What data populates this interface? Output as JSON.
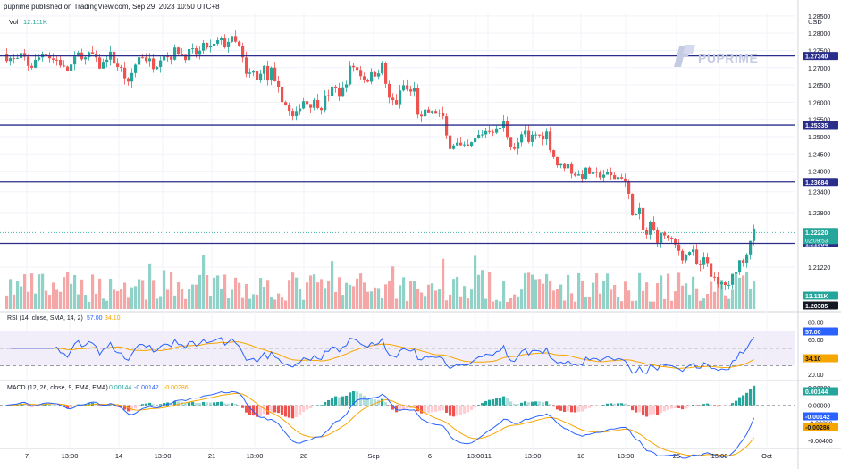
{
  "header": {
    "published_text": "puprime published on TradingView.com, Sep 29, 2023 10:50 UTC+8",
    "currency": "USD",
    "brand": "PUPRIME"
  },
  "chart_data": [
    {
      "type": "candlestick",
      "title": "Price",
      "currency": "USD",
      "ylim": [
        1.2,
        1.286
      ],
      "y_ticks": [
        1.285,
        1.28,
        1.275,
        1.27,
        1.265,
        1.26,
        1.255,
        1.25,
        1.245,
        1.24,
        1.234,
        1.228,
        1.2122
      ],
      "y_tick_labels": [
        "1.28500",
        "1.28000",
        "1.27500",
        "1.27000",
        "1.26500",
        "1.26000",
        "1.25500",
        "1.25000",
        "1.24500",
        "1.24000",
        "1.23400",
        "1.22800",
        "1.21220"
      ],
      "x_tick_labels": [
        "7",
        "13:00",
        "14",
        "13:00",
        "21",
        "13:00",
        "28",
        "Sep",
        "6",
        "13:00",
        "11",
        "13:00",
        "18",
        "13:00",
        "25",
        "13:00",
        "Oct"
      ],
      "support_resistance_levels": [
        {
          "value": 1.2734,
          "label": "1.27340",
          "color": "#2a2e8a"
        },
        {
          "value": 1.25335,
          "label": "1.25335",
          "color": "#2a2e8a"
        },
        {
          "value": 1.23684,
          "label": "1.23684",
          "color": "#2a2e8a"
        },
        {
          "value": 1.21904,
          "label": "1.21904",
          "color": "#2a2e8a"
        }
      ],
      "current_price": {
        "value": 1.2222,
        "label": "1.22220",
        "countdown": "02:09:53",
        "color": "#26a69a"
      },
      "last_close_approx": 1.2222,
      "price_path": [
        [
          0,
          1.2715
        ],
        [
          6,
          1.274
        ],
        [
          12,
          1.273
        ],
        [
          20,
          1.2718
        ],
        [
          28,
          1.2735
        ],
        [
          36,
          1.27
        ],
        [
          44,
          1.2722
        ],
        [
          52,
          1.2752
        ],
        [
          60,
          1.2725
        ],
        [
          68,
          1.2722
        ],
        [
          76,
          1.2686
        ],
        [
          84,
          1.2712
        ],
        [
          92,
          1.2745
        ],
        [
          100,
          1.2718
        ],
        [
          104,
          1.275
        ],
        [
          108,
          1.2722
        ],
        [
          116,
          1.27
        ],
        [
          124,
          1.2745
        ],
        [
          132,
          1.271
        ],
        [
          140,
          1.2688
        ],
        [
          146,
          1.2648
        ],
        [
          152,
          1.27
        ],
        [
          160,
          1.274
        ],
        [
          168,
          1.2722
        ],
        [
          176,
          1.2705
        ],
        [
          184,
          1.2745
        ],
        [
          192,
          1.273
        ],
        [
          200,
          1.2752
        ],
        [
          208,
          1.2733
        ],
        [
          216,
          1.2745
        ],
        [
          224,
          1.2738
        ],
        [
          232,
          1.2765
        ],
        [
          240,
          1.2755
        ],
        [
          248,
          1.278
        ],
        [
          254,
          1.2768
        ],
        [
          260,
          1.2785
        ],
        [
          266,
          1.277
        ],
        [
          272,
          1.275
        ],
        [
          276,
          1.2692
        ],
        [
          280,
          1.266
        ],
        [
          284,
          1.27
        ],
        [
          290,
          1.266
        ],
        [
          296,
          1.2712
        ],
        [
          302,
          1.2665
        ],
        [
          306,
          1.269
        ],
        [
          310,
          1.2648
        ],
        [
          316,
          1.2625
        ],
        [
          324,
          1.258
        ],
        [
          332,
          1.2545
        ],
        [
          340,
          1.261
        ],
        [
          348,
          1.2595
        ],
        [
          356,
          1.26
        ],
        [
          362,
          1.259
        ],
        [
          368,
          1.262
        ],
        [
          376,
          1.264
        ],
        [
          384,
          1.262
        ],
        [
          390,
          1.2665
        ],
        [
          396,
          1.271
        ],
        [
          404,
          1.2688
        ],
        [
          412,
          1.2665
        ],
        [
          420,
          1.268
        ],
        [
          430,
          1.2705
        ],
        [
          438,
          1.2605
        ],
        [
          446,
          1.26
        ],
        [
          454,
          1.2648
        ],
        [
          460,
          1.2628
        ],
        [
          466,
          1.2635
        ],
        [
          472,
          1.254
        ],
        [
          480,
          1.2575
        ],
        [
          486,
          1.2565
        ],
        [
          492,
          1.2575
        ],
        [
          498,
          1.2548
        ],
        [
          504,
          1.2475
        ],
        [
          512,
          1.2485
        ],
        [
          520,
          1.2462
        ],
        [
          528,
          1.247
        ],
        [
          536,
          1.2498
        ],
        [
          544,
          1.2515
        ],
        [
          552,
          1.2525
        ],
        [
          558,
          1.2515
        ],
        [
          566,
          1.254
        ],
        [
          572,
          1.2488
        ],
        [
          580,
          1.2462
        ],
        [
          588,
          1.252
        ],
        [
          594,
          1.2478
        ],
        [
          600,
          1.251
        ],
        [
          606,
          1.25
        ],
        [
          614,
          1.251
        ],
        [
          620,
          1.2455
        ],
        [
          628,
          1.2408
        ],
        [
          636,
          1.2422
        ],
        [
          644,
          1.2395
        ],
        [
          652,
          1.2385
        ],
        [
          660,
          1.2402
        ],
        [
          668,
          1.238
        ],
        [
          676,
          1.2395
        ],
        [
          684,
          1.2385
        ],
        [
          692,
          1.238
        ],
        [
          700,
          1.239
        ],
        [
          706,
          1.2325
        ],
        [
          712,
          1.2265
        ],
        [
          718,
          1.228
        ],
        [
          724,
          1.22
        ],
        [
          730,
          1.2245
        ],
        [
          738,
          1.2205
        ],
        [
          746,
          1.2218
        ],
        [
          752,
          1.2195
        ],
        [
          760,
          1.218
        ],
        [
          768,
          1.2145
        ],
        [
          776,
          1.2178
        ],
        [
          784,
          1.211
        ],
        [
          792,
          1.215
        ],
        [
          800,
          1.209
        ],
        [
          806,
          1.2065
        ],
        [
          812,
          1.208
        ],
        [
          818,
          1.206
        ],
        [
          824,
          1.211
        ],
        [
          830,
          1.2138
        ],
        [
          836,
          1.215
        ],
        [
          844,
          1.2222
        ]
      ]
    },
    {
      "type": "bar",
      "title": "Vol",
      "value_label": "12.111K",
      "value_color": "#26a69a",
      "labels": [
        {
          "label": "12.111K",
          "color": "#26a69a"
        },
        {
          "label": "1.20385",
          "color": "#131722"
        }
      ],
      "colors": {
        "up": "#90d2c8",
        "down": "#f5a6a6"
      }
    },
    {
      "type": "line",
      "title": "RSI (14, close, SMA, 14, 2)",
      "values_label": {
        "rsi": "57.00",
        "sma": "34.10"
      },
      "ylim": [
        15,
        90
      ],
      "y_ticks": [
        80,
        60,
        40,
        20
      ],
      "y_tick_labels": [
        "80.00",
        "60.00",
        "40.00",
        "20.00"
      ],
      "bands": {
        "upper": 70,
        "middle": 50,
        "lower": 30
      },
      "current_labels": [
        {
          "label": "57.00",
          "color": "#2962ff"
        },
        {
          "label": "34.10",
          "color": "#f7a600"
        }
      ],
      "series": [
        {
          "name": "RSI",
          "color": "#2962ff"
        },
        {
          "name": "RSI-based MA",
          "color": "#f7a600"
        }
      ]
    },
    {
      "type": "bar_line",
      "title": "MACD (12, 26, close, 9, EMA, EMA)",
      "values_label": {
        "histogram": "0.00144",
        "macd": "-0.00142",
        "signal": "-0.00286"
      },
      "ylim": [
        -0.0047,
        0.0026
      ],
      "y_ticks": [
        0.002,
        0.0,
        -0.002,
        -0.004
      ],
      "y_tick_labels": [
        "0.00200",
        "0.00000",
        "-0.00200",
        "-0.00400"
      ],
      "current_labels": [
        {
          "label": "0.00144",
          "color": "#26a69a"
        },
        {
          "label": "-0.00142",
          "color": "#2962ff"
        },
        {
          "label": "-0.00286",
          "color": "#f7a600"
        }
      ],
      "series": [
        {
          "name": "MACD",
          "color": "#2962ff"
        },
        {
          "name": "Signal",
          "color": "#f7a600"
        },
        {
          "name": "Histogram",
          "color_up": "#26a69a",
          "color_down": "#ef5350"
        }
      ]
    }
  ]
}
